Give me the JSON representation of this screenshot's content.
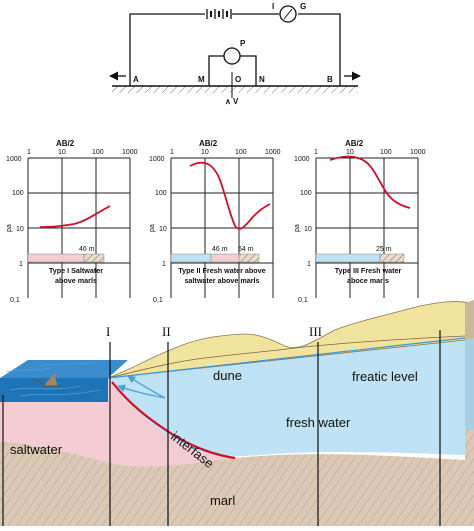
{
  "circuit": {
    "electrode_a": "A",
    "electrode_m": "M",
    "center_o": "O",
    "electrode_n": "N",
    "electrode_b": "B",
    "potentiometer": "P",
    "current_source": "I",
    "galvanometer": "G",
    "depth_mark": "V"
  },
  "graphs": [
    {
      "id": "type-1",
      "ab_label": "AB/2",
      "x_ticks": [
        "1",
        "10",
        "100",
        "1000"
      ],
      "y_ticks": [
        "1000",
        "100",
        "10",
        "1",
        "0,1"
      ],
      "ylabel": "pa",
      "strip_label": "46 m",
      "caption_line1": "Type I Saltwater",
      "caption_line2": "above marls",
      "curve_color": "#d0102a"
    },
    {
      "id": "type-2",
      "ab_label": "AB/2",
      "x_ticks": [
        "1",
        "10",
        "100",
        "1000"
      ],
      "y_ticks": [
        "1000",
        "100",
        "10",
        "1",
        "0,1"
      ],
      "ylabel": "pa",
      "strip_label_a": "46 m",
      "strip_label_b": "64 m",
      "caption_line1": "Type II Fresh water above",
      "caption_line2": "saltwater above marls",
      "curve_color": "#d0102a"
    },
    {
      "id": "type-3",
      "ab_label": "AB/2",
      "x_ticks": [
        "1",
        "10",
        "100",
        "1000"
      ],
      "y_ticks": [
        "1000",
        "100",
        "10",
        "1",
        "0,1"
      ],
      "ylabel": "pa",
      "strip_label": "25 m",
      "caption_line1": "Type III Fresh water",
      "caption_line2": "aboce marls",
      "curve_color": "#d0102a"
    }
  ],
  "section": {
    "markers": [
      "I",
      "II",
      "III"
    ],
    "labels": {
      "dune": "dune",
      "freatic_level": "freatic level",
      "fresh_water": "fresh water",
      "saltwater": "saltwater",
      "interfase": "interfase",
      "marl": "marl"
    },
    "colors": {
      "sea": "#1f74b8",
      "dune": "#f2e39e",
      "fresh_water": "#bfe2f4",
      "saltwater": "#f3ccd4",
      "marl": "#d9c6b3",
      "interface_line": "#d0102a",
      "arrows": "#4aa2d8"
    }
  }
}
